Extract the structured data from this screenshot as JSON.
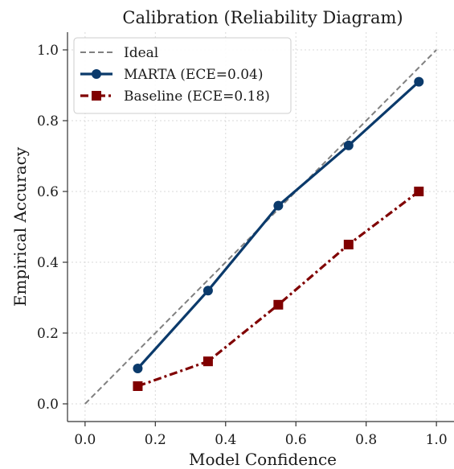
{
  "chart_data": {
    "type": "line",
    "title": "Calibration (Reliability Diagram)",
    "xlabel": "Model Confidence",
    "ylabel": "Empirical Accuracy",
    "xlim": [
      -0.05,
      1.05
    ],
    "ylim": [
      -0.05,
      1.05
    ],
    "xticks": [
      "0.0",
      "0.2",
      "0.4",
      "0.6",
      "0.8",
      "1.0"
    ],
    "yticks": [
      "0.0",
      "0.2",
      "0.4",
      "0.6",
      "0.8",
      "1.0"
    ],
    "grid": true,
    "legend_position": "top-left",
    "series": [
      {
        "name": "Ideal",
        "x": [
          0.0,
          1.0
        ],
        "y": [
          0.0,
          1.0
        ],
        "color": "#808080",
        "style": "dashed",
        "marker": "none"
      },
      {
        "name": "MARTA (ECE=0.04)",
        "x": [
          0.15,
          0.35,
          0.55,
          0.75,
          0.95
        ],
        "y": [
          0.1,
          0.32,
          0.56,
          0.73,
          0.91
        ],
        "color": "#0b3a6b",
        "style": "solid",
        "marker": "circle"
      },
      {
        "name": "Baseline (ECE=0.18)",
        "x": [
          0.15,
          0.35,
          0.55,
          0.75,
          0.95
        ],
        "y": [
          0.05,
          0.12,
          0.28,
          0.45,
          0.6
        ],
        "color": "#800000",
        "style": "dashdot",
        "marker": "square"
      }
    ]
  }
}
